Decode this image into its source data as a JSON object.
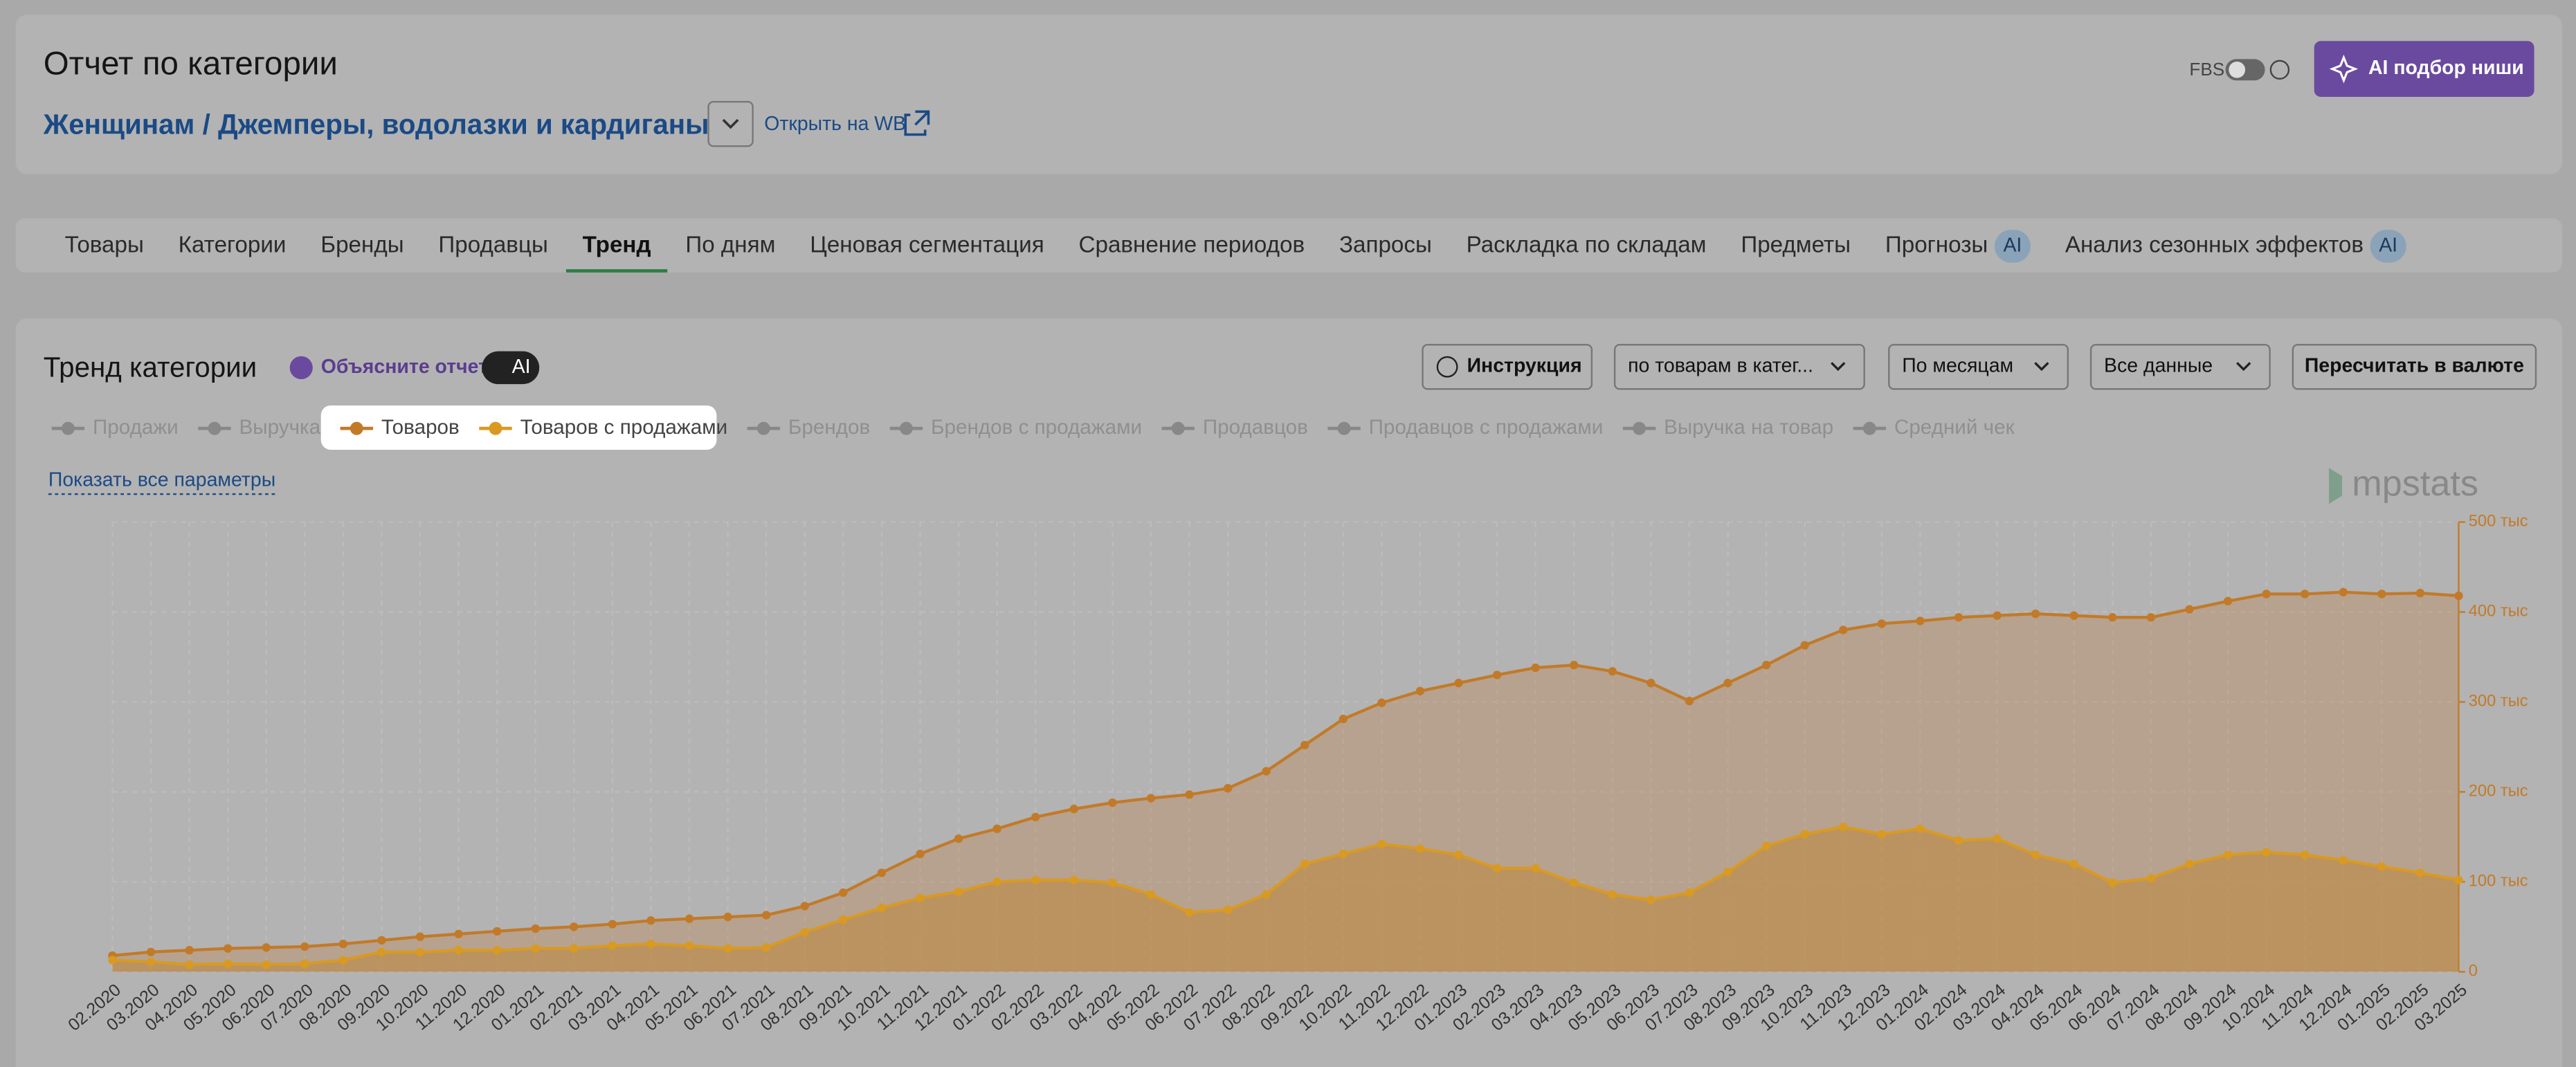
{
  "header": {
    "title": "Отчет по категории",
    "breadcrumb": [
      "Женщинам",
      "/",
      "Джемперы, водолазки и кардиганы"
    ],
    "open_link": "Открыть на WB",
    "fbs": "FBS",
    "ai_button": "AI подбор ниши"
  },
  "tabs": [
    {
      "label": "Товары"
    },
    {
      "label": "Категории"
    },
    {
      "label": "Бренды"
    },
    {
      "label": "Продавцы"
    },
    {
      "label": "Тренд",
      "active": true
    },
    {
      "label": "По дням"
    },
    {
      "label": "Ценовая сегментация"
    },
    {
      "label": "Сравнение периодов"
    },
    {
      "label": "Запросы"
    },
    {
      "label": "Раскладка по складам"
    },
    {
      "label": "Предметы"
    },
    {
      "label": "Прогнозы",
      "badge": "AI"
    },
    {
      "label": "Анализ сезонных эффектов",
      "badge": "AI"
    }
  ],
  "panel": {
    "title": "Тренд категории",
    "explain": "Объясните отчет",
    "explain_badge": "AI",
    "controls": [
      "Инструкция",
      "по товарам в катег...",
      "По месяцам",
      "Все данные",
      "Пересчитать в валюте"
    ],
    "show_all": "Показать все параметры",
    "logo": "mpstats"
  },
  "legend": {
    "before": [
      "Продажи",
      "Выручка"
    ],
    "after": [
      "Брендов",
      "Брендов с продажами",
      "Продавцов",
      "Продавцов с продажами",
      "Выручка на товар",
      "Средний чек"
    ]
  },
  "chart_data": {
    "type": "area",
    "categories": [
      "02.2020",
      "03.2020",
      "04.2020",
      "05.2020",
      "06.2020",
      "07.2020",
      "08.2020",
      "09.2020",
      "10.2020",
      "11.2020",
      "12.2020",
      "01.2021",
      "02.2021",
      "03.2021",
      "04.2021",
      "05.2021",
      "06.2021",
      "07.2021",
      "08.2021",
      "09.2021",
      "10.2021",
      "11.2021",
      "12.2021",
      "01.2022",
      "02.2022",
      "03.2022",
      "04.2022",
      "05.2022",
      "06.2022",
      "07.2022",
      "08.2022",
      "09.2022",
      "10.2022",
      "11.2022",
      "12.2022",
      "01.2023",
      "02.2023",
      "03.2023",
      "04.2023",
      "05.2023",
      "06.2023",
      "07.2023",
      "08.2023",
      "09.2023",
      "10.2023",
      "11.2023",
      "12.2023",
      "01.2024",
      "02.2024",
      "03.2024",
      "04.2024",
      "05.2024",
      "06.2024",
      "07.2024",
      "08.2024",
      "09.2024",
      "10.2024",
      "11.2024",
      "12.2024",
      "01.2025",
      "02.2025",
      "03.2025"
    ],
    "series": [
      {
        "name": "Товаров",
        "color": "#c27a28",
        "fill": "rgba(190,120,50,0.28)",
        "values": [
          18,
          22,
          24,
          26,
          27,
          28,
          31,
          35,
          39,
          42,
          45,
          48,
          50,
          53,
          57,
          59,
          61,
          63,
          73,
          88,
          110,
          131,
          148,
          159,
          172,
          181,
          188,
          193,
          197,
          204,
          223,
          252,
          281,
          299,
          312,
          321,
          330,
          338,
          341,
          334,
          321,
          301,
          321,
          341,
          363,
          380,
          387,
          390,
          394,
          396,
          398,
          396,
          394,
          394,
          403,
          412,
          420,
          420,
          422,
          420,
          421,
          418
        ]
      },
      {
        "name": "Товаров с продажами",
        "color": "#d99a22",
        "fill": "rgba(190,135,60,0.55)",
        "values": [
          13,
          11,
          8,
          9,
          8,
          9,
          13,
          22,
          22,
          24,
          24,
          26,
          26,
          29,
          31,
          29,
          26,
          27,
          44,
          58,
          71,
          82,
          89,
          100,
          102,
          102,
          99,
          86,
          66,
          69,
          86,
          120,
          131,
          142,
          137,
          130,
          115,
          115,
          99,
          86,
          80,
          88,
          111,
          140,
          153,
          161,
          153,
          159,
          146,
          148,
          130,
          120,
          99,
          104,
          120,
          130,
          133,
          130,
          124,
          117,
          110,
          102
        ]
      }
    ],
    "ylim": [
      0,
      500
    ],
    "yticks": [
      0,
      {
        "value": 100,
        "label": "100 тыс"
      },
      {
        "value": 200,
        "label": "200 тыс"
      },
      {
        "value": 300,
        "label": "300 тыс"
      },
      {
        "value": 400,
        "label": "400 тыс"
      },
      {
        "value": 500,
        "label": "500 тыс"
      }
    ],
    "grid": true
  }
}
